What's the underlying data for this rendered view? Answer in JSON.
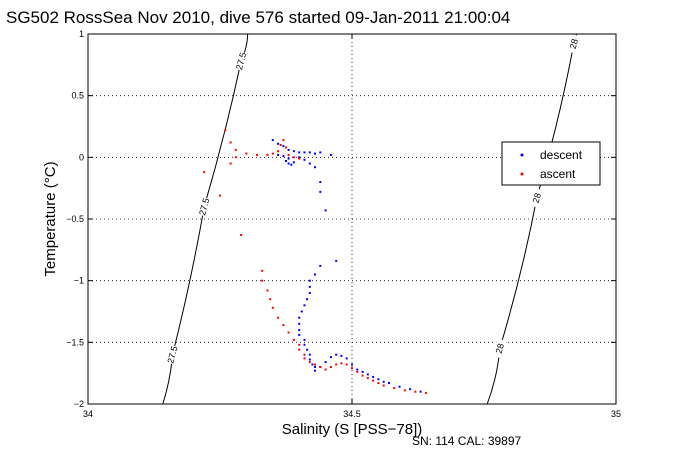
{
  "chart_data": {
    "type": "scatter",
    "title": "SG502 RossSea Nov 2010, dive 576 started 09-Jan-2011 21:00:04",
    "xlabel": "Salinity (S [PSS−78])",
    "ylabel": "Temperature (°C)",
    "xlim": [
      34,
      35
    ],
    "ylim": [
      -2,
      1
    ],
    "x_ticks": [
      "34",
      "34.5",
      "35"
    ],
    "y_ticks": [
      "-2",
      "-1.5",
      "-1",
      "-0.5",
      "0",
      "0.5",
      "1"
    ],
    "grid": true,
    "legend_position": "right",
    "series": [
      {
        "name": "descent",
        "color": "#0000ff",
        "marker": "dot",
        "points": [
          [
            34.35,
            0.14
          ],
          [
            34.36,
            0.11
          ],
          [
            34.37,
            0.09
          ],
          [
            34.38,
            0.06
          ],
          [
            34.39,
            0.05
          ],
          [
            34.4,
            0.04
          ],
          [
            34.41,
            0.04
          ],
          [
            34.42,
            0.04
          ],
          [
            34.43,
            0.03
          ],
          [
            34.44,
            0.04
          ],
          [
            34.46,
            0.02
          ],
          [
            34.36,
            0.02
          ],
          [
            34.37,
            0.01
          ],
          [
            34.38,
            -0.01
          ],
          [
            34.375,
            -0.03
          ],
          [
            34.38,
            -0.05
          ],
          [
            34.385,
            -0.06
          ],
          [
            34.39,
            -0.04
          ],
          [
            34.4,
            0.0
          ],
          [
            34.41,
            -0.02
          ],
          [
            34.42,
            -0.05
          ],
          [
            34.43,
            -0.08
          ],
          [
            34.44,
            -0.2
          ],
          [
            34.44,
            -0.28
          ],
          [
            34.45,
            -0.43
          ],
          [
            34.47,
            -0.84
          ],
          [
            34.44,
            -0.88
          ],
          [
            34.43,
            -0.95
          ],
          [
            34.42,
            -1.0
          ],
          [
            34.42,
            -1.05
          ],
          [
            34.42,
            -1.1
          ],
          [
            34.415,
            -1.15
          ],
          [
            34.41,
            -1.2
          ],
          [
            34.405,
            -1.25
          ],
          [
            34.4,
            -1.3
          ],
          [
            34.4,
            -1.35
          ],
          [
            34.4,
            -1.4
          ],
          [
            34.4,
            -1.44
          ],
          [
            34.41,
            -1.48
          ],
          [
            34.41,
            -1.52
          ],
          [
            34.415,
            -1.56
          ],
          [
            34.42,
            -1.6
          ],
          [
            34.42,
            -1.64
          ],
          [
            34.425,
            -1.68
          ],
          [
            34.43,
            -1.7
          ],
          [
            34.43,
            -1.73
          ],
          [
            34.44,
            -1.7
          ],
          [
            34.45,
            -1.66
          ],
          [
            34.46,
            -1.62
          ],
          [
            34.47,
            -1.6
          ],
          [
            34.48,
            -1.61
          ],
          [
            34.49,
            -1.63
          ],
          [
            34.5,
            -1.68
          ],
          [
            34.51,
            -1.72
          ],
          [
            34.52,
            -1.74
          ],
          [
            34.53,
            -1.76
          ],
          [
            34.54,
            -1.78
          ],
          [
            34.55,
            -1.8
          ],
          [
            34.56,
            -1.82
          ],
          [
            34.57,
            -1.83
          ],
          [
            34.59,
            -1.86
          ],
          [
            34.61,
            -1.88
          ],
          [
            34.63,
            -1.9
          ]
        ]
      },
      {
        "name": "ascent",
        "color": "#ff0000",
        "marker": "dot",
        "points": [
          [
            34.26,
            0.22
          ],
          [
            34.27,
            0.12
          ],
          [
            34.28,
            0.06
          ],
          [
            34.3,
            0.03
          ],
          [
            34.32,
            0.02
          ],
          [
            34.34,
            0.02
          ],
          [
            34.35,
            0.03
          ],
          [
            34.36,
            0.05
          ],
          [
            34.365,
            0.1
          ],
          [
            34.37,
            0.14
          ],
          [
            34.375,
            0.08
          ],
          [
            34.38,
            0.02
          ],
          [
            34.39,
            0.0
          ],
          [
            34.4,
            -0.01
          ],
          [
            34.28,
            0.0
          ],
          [
            34.27,
            -0.05
          ],
          [
            34.22,
            -0.12
          ],
          [
            34.25,
            -0.31
          ],
          [
            34.29,
            -0.63
          ],
          [
            34.33,
            -0.92
          ],
          [
            34.33,
            -1.0
          ],
          [
            34.34,
            -1.08
          ],
          [
            34.345,
            -1.15
          ],
          [
            34.35,
            -1.22
          ],
          [
            34.36,
            -1.3
          ],
          [
            34.37,
            -1.36
          ],
          [
            34.38,
            -1.42
          ],
          [
            34.39,
            -1.48
          ],
          [
            34.4,
            -1.52
          ],
          [
            34.4,
            -1.56
          ],
          [
            34.41,
            -1.6
          ],
          [
            34.41,
            -1.63
          ],
          [
            34.42,
            -1.66
          ],
          [
            34.43,
            -1.68
          ],
          [
            34.44,
            -1.7
          ],
          [
            34.45,
            -1.72
          ],
          [
            34.46,
            -1.7
          ],
          [
            34.47,
            -1.68
          ],
          [
            34.48,
            -1.67
          ],
          [
            34.49,
            -1.68
          ],
          [
            34.5,
            -1.71
          ],
          [
            34.51,
            -1.74
          ],
          [
            34.52,
            -1.77
          ],
          [
            34.53,
            -1.79
          ],
          [
            34.54,
            -1.81
          ],
          [
            34.55,
            -1.83
          ],
          [
            34.56,
            -1.85
          ],
          [
            34.58,
            -1.87
          ],
          [
            34.6,
            -1.89
          ],
          [
            34.62,
            -1.9
          ],
          [
            34.64,
            -1.91
          ]
        ]
      }
    ],
    "isopycnals": [
      {
        "label": "27.5",
        "label_positions": [
          [
            34.29,
            0.78
          ],
          [
            34.22,
            -0.4
          ],
          [
            34.16,
            -1.6
          ]
        ]
      },
      {
        "label": "28",
        "label_positions": [
          [
            34.92,
            0.92
          ],
          [
            34.85,
            -0.33
          ],
          [
            34.78,
            -1.55
          ]
        ]
      }
    ]
  },
  "footer": {
    "serial": "SN: 114  CAL: 39897"
  }
}
